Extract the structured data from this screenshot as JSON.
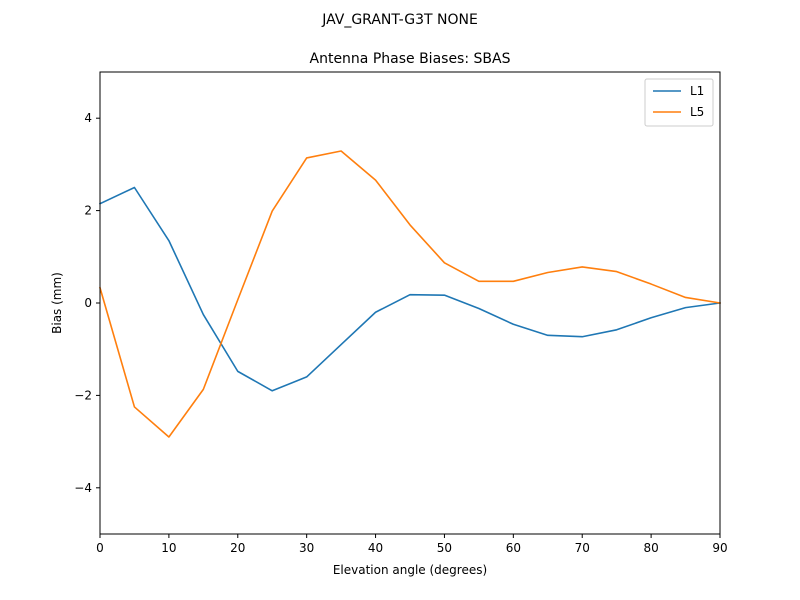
{
  "suptitle": "JAV_GRANT-G3T   NONE",
  "chart_data": {
    "type": "line",
    "title": "Antenna Phase Biases: SBAS",
    "xlabel": "Elevation angle (degrees)",
    "ylabel": "Bias (mm)",
    "xlim": [
      0,
      90
    ],
    "ylim": [
      -5,
      5
    ],
    "x_ticks": [
      0,
      10,
      20,
      30,
      40,
      50,
      60,
      70,
      80,
      90
    ],
    "x_tick_labels": [
      "0",
      "10",
      "20",
      "30",
      "40",
      "50",
      "60",
      "70",
      "80",
      "90"
    ],
    "y_ticks": [
      -4,
      -2,
      0,
      2,
      4
    ],
    "y_tick_labels": [
      "−4",
      "−2",
      "0",
      "2",
      "4"
    ],
    "grid": false,
    "legend_position": "upper right",
    "x": [
      0,
      5,
      10,
      15,
      20,
      25,
      30,
      35,
      40,
      45,
      50,
      55,
      60,
      65,
      70,
      75,
      80,
      85,
      90
    ],
    "series": [
      {
        "name": "L1",
        "color": "#1f77b4",
        "values": [
          2.15,
          2.5,
          1.35,
          -0.25,
          -1.48,
          -1.9,
          -1.6,
          -0.9,
          -0.2,
          0.18,
          0.17,
          -0.12,
          -0.46,
          -0.7,
          -0.73,
          -0.58,
          -0.32,
          -0.1,
          0.0
        ]
      },
      {
        "name": "L5",
        "color": "#ff7f0e",
        "values": [
          0.33,
          -2.25,
          -2.9,
          -1.87,
          0.07,
          1.99,
          3.14,
          3.29,
          2.66,
          1.69,
          0.87,
          0.47,
          0.47,
          0.66,
          0.78,
          0.68,
          0.41,
          0.12,
          0.0
        ]
      }
    ]
  }
}
